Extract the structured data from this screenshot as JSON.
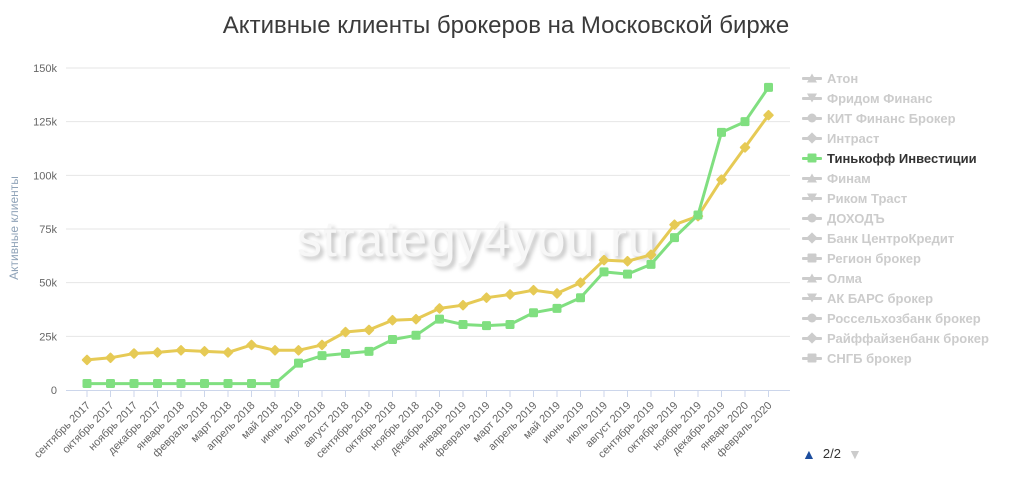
{
  "title": "Активные клиенты брокеров на Московской бирже",
  "watermark": "strategy4you.ru",
  "colors": {
    "series_green": "#80df80",
    "series_yellow": "#e6ca55",
    "grid": "#e6e6e6",
    "axis_line": "#ccd6eb",
    "tick_text": "#666666",
    "title_text": "#3b3b3b",
    "legend_inactive": "#cccccc",
    "legend_active_text": "#333333",
    "pager_active": "#1d4e9e",
    "pager_inactive": "#cccccc"
  },
  "chart_data": {
    "type": "line",
    "title": "Активные клиенты брокеров на Московской бирже",
    "xlabel": "",
    "ylabel": "Активные клиенты",
    "ylim": [
      0,
      150000
    ],
    "yticks": [
      "0",
      "25k",
      "50k",
      "75k",
      "100k",
      "125k",
      "150k"
    ],
    "grid": true,
    "legend_position": "right",
    "categories": [
      "сентябрь 2017",
      "октябрь 2017",
      "ноябрь 2017",
      "декабрь 2017",
      "январь 2018",
      "февраль 2018",
      "март 2018",
      "апрель 2018",
      "май 2018",
      "июнь 2018",
      "июль 2018",
      "август 2018",
      "сентябрь 2018",
      "октябрь 2018",
      "ноябрь 2018",
      "декабрь 2018",
      "январь 2019",
      "февраль 2019",
      "март 2019",
      "апрель 2019",
      "май 2019",
      "июнь 2019",
      "июль 2019",
      "август 2019",
      "сентябрь 2019",
      "октябрь 2019",
      "ноябрь 2019",
      "декабрь 2019",
      "январь 2020",
      "февраль 2020"
    ],
    "series": [
      {
        "name": "",
        "color": "#e6ca55",
        "marker": "diamond",
        "values": [
          14000,
          15000,
          17000,
          17500,
          18500,
          18000,
          17500,
          21000,
          18500,
          18500,
          21000,
          27000,
          28000,
          32500,
          33000,
          38000,
          39500,
          43000,
          44500,
          46500,
          45000,
          50000,
          60500,
          60000,
          63000,
          77000,
          81000,
          98000,
          113000,
          128000
        ]
      },
      {
        "name": "Тинькофф Инвестиции",
        "color": "#80df80",
        "marker": "square",
        "values": [
          3000,
          3000,
          3000,
          3000,
          3000,
          3000,
          3000,
          3000,
          3000,
          12500,
          16000,
          17000,
          18000,
          23500,
          25500,
          33000,
          30500,
          30000,
          30500,
          36000,
          38000,
          43000,
          55000,
          54000,
          58500,
          71000,
          81500,
          120000,
          125000,
          141000
        ]
      }
    ]
  },
  "legend": {
    "items": [
      {
        "label": "Атон",
        "symbol": "triangle",
        "active": false
      },
      {
        "label": "Фридом Финанс",
        "symbol": "triangle-down",
        "active": false
      },
      {
        "label": "КИТ Финанс Брокер",
        "symbol": "circle",
        "active": false
      },
      {
        "label": "Интраст",
        "symbol": "diamond",
        "active": false
      },
      {
        "label": "Тинькофф Инвестиции",
        "symbol": "square",
        "active": true
      },
      {
        "label": "Финам",
        "symbol": "triangle",
        "active": false
      },
      {
        "label": "Риком Траст",
        "symbol": "triangle-down",
        "active": false
      },
      {
        "label": "ДОХОДЪ",
        "symbol": "circle",
        "active": false
      },
      {
        "label": "Банк ЦентроКредит",
        "symbol": "diamond",
        "active": false
      },
      {
        "label": "Регион брокер",
        "symbol": "square",
        "active": false
      },
      {
        "label": "Олма",
        "symbol": "triangle",
        "active": false
      },
      {
        "label": "АК БАРС брокер",
        "symbol": "triangle-down",
        "active": false
      },
      {
        "label": "Россельхозбанк брокер",
        "symbol": "circle",
        "active": false
      },
      {
        "label": "Райффайзенбанк брокер",
        "symbol": "diamond",
        "active": false
      },
      {
        "label": "СНГБ брокер",
        "symbol": "square",
        "active": false
      }
    ],
    "pagination": {
      "up_symbol": "▲",
      "label": "2/2",
      "down_symbol": "▼",
      "current_page": 2,
      "total_pages": 2
    }
  }
}
